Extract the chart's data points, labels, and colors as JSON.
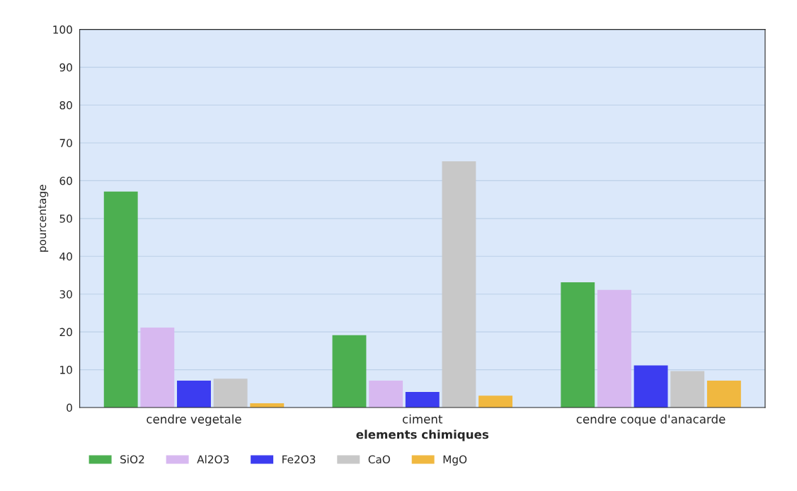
{
  "chart_data": {
    "type": "bar",
    "xlabel": "elements chimiques",
    "ylabel": "pourcentage",
    "categories": [
      "cendre vegetale",
      "ciment",
      "cendre coque d'anacarde"
    ],
    "series": [
      {
        "name": "SiO2",
        "color": "#4caf50",
        "values": [
          57,
          19,
          33
        ]
      },
      {
        "name": "Al2O3",
        "color": "#d7b8f0",
        "values": [
          21,
          7,
          31
        ]
      },
      {
        "name": "Fe2O3",
        "color": "#3c3cf0",
        "values": [
          7,
          4,
          11
        ]
      },
      {
        "name": "CaO",
        "color": "#c8c8c8",
        "values": [
          7.5,
          65,
          9.5
        ]
      },
      {
        "name": "MgO",
        "color": "#f0b840",
        "values": [
          1,
          3,
          7
        ]
      }
    ],
    "ylim": [
      0,
      100
    ],
    "yticks": [
      0,
      10,
      20,
      30,
      40,
      50,
      60,
      70,
      80,
      90,
      100
    ],
    "grid": "y",
    "legend": "bottom"
  }
}
